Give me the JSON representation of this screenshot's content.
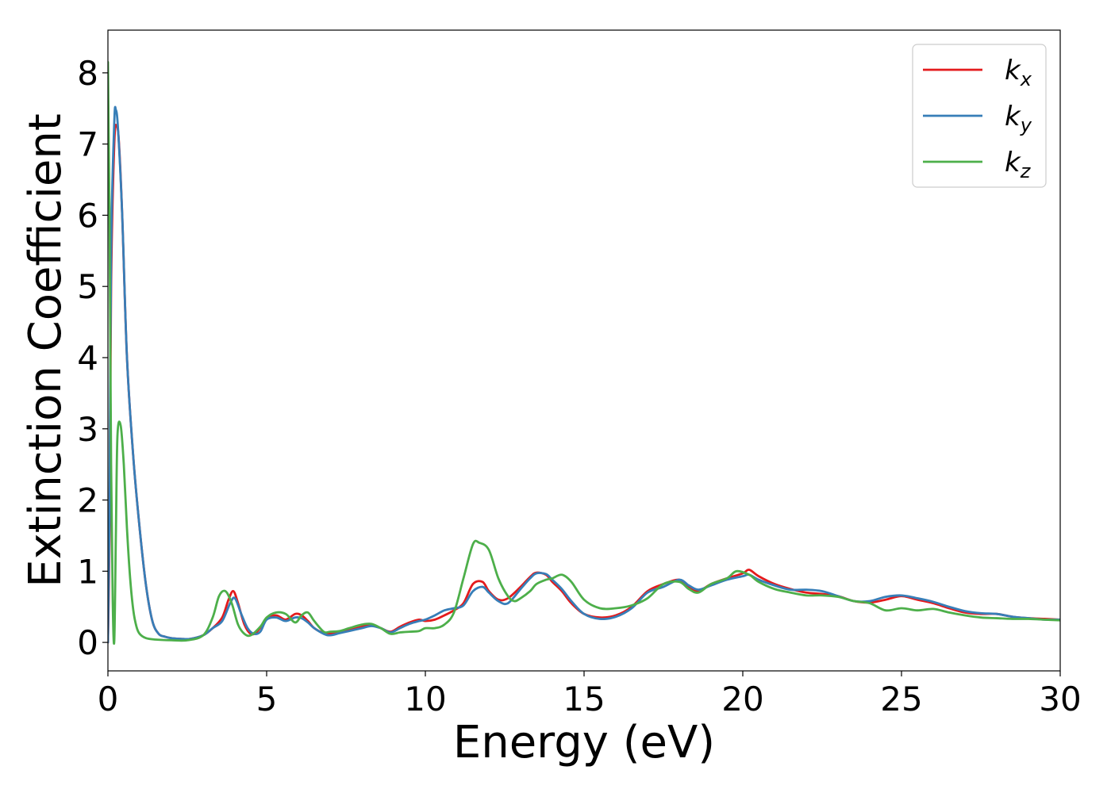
{
  "chart_data": {
    "type": "line",
    "xlabel": "Energy (eV)",
    "ylabel": "Extinction Coefficient",
    "xlim": [
      0,
      30
    ],
    "ylim": [
      -0.4,
      8.6
    ],
    "xticks": [
      "0",
      "5",
      "10",
      "15",
      "20",
      "25",
      "30"
    ],
    "yticks": [
      "0",
      "1",
      "2",
      "3",
      "4",
      "5",
      "6",
      "7",
      "8"
    ],
    "grid": false,
    "legend_position": "top-right",
    "series": [
      {
        "name": "k_x",
        "label_main": "k",
        "label_sub": "x",
        "color": "#e41a1c",
        "x": [
          0,
          0.05,
          0.1,
          0.2,
          0.28,
          0.35,
          0.45,
          0.6,
          0.8,
          1.0,
          1.2,
          1.4,
          1.6,
          1.8,
          2.0,
          2.3,
          2.6,
          3.0,
          3.3,
          3.6,
          3.8,
          3.95,
          4.1,
          4.3,
          4.5,
          4.7,
          5.0,
          5.3,
          5.6,
          5.9,
          6.1,
          6.3,
          6.5,
          6.8,
          7.0,
          7.3,
          7.6,
          8.0,
          8.3,
          8.6,
          8.9,
          9.2,
          9.5,
          9.8,
          10.0,
          10.3,
          10.6,
          10.9,
          11.2,
          11.5,
          11.8,
          12.0,
          12.3,
          12.6,
          13.0,
          13.3,
          13.5,
          13.8,
          14.0,
          14.3,
          14.6,
          15.0,
          15.5,
          16.0,
          16.5,
          17.0,
          17.5,
          18.0,
          18.3,
          18.6,
          19.0,
          19.5,
          20.0,
          20.2,
          20.5,
          21.0,
          21.5,
          22.0,
          22.5,
          23.0,
          23.5,
          24.0,
          24.5,
          25.0,
          25.5,
          26.0,
          26.5,
          27.0,
          27.5,
          28.0,
          28.5,
          29.0,
          29.5,
          30.0
        ],
        "y": [
          0.0,
          1.5,
          5.0,
          7.0,
          7.25,
          7.0,
          6.0,
          4.0,
          2.6,
          1.6,
          0.8,
          0.3,
          0.12,
          0.08,
          0.06,
          0.05,
          0.05,
          0.1,
          0.2,
          0.35,
          0.6,
          0.72,
          0.55,
          0.25,
          0.12,
          0.15,
          0.33,
          0.38,
          0.32,
          0.4,
          0.38,
          0.3,
          0.2,
          0.13,
          0.12,
          0.14,
          0.17,
          0.22,
          0.25,
          0.2,
          0.15,
          0.22,
          0.28,
          0.32,
          0.3,
          0.32,
          0.38,
          0.45,
          0.55,
          0.82,
          0.85,
          0.72,
          0.6,
          0.62,
          0.78,
          0.92,
          0.98,
          0.95,
          0.85,
          0.72,
          0.55,
          0.4,
          0.35,
          0.38,
          0.5,
          0.72,
          0.82,
          0.88,
          0.78,
          0.72,
          0.82,
          0.9,
          0.97,
          1.02,
          0.93,
          0.82,
          0.75,
          0.7,
          0.68,
          0.65,
          0.58,
          0.56,
          0.6,
          0.65,
          0.6,
          0.55,
          0.48,
          0.42,
          0.4,
          0.4,
          0.36,
          0.34,
          0.33,
          0.32
        ]
      },
      {
        "name": "k_y",
        "label_main": "k",
        "label_sub": "y",
        "color": "#377eb8",
        "x": [
          0,
          0.05,
          0.1,
          0.2,
          0.25,
          0.32,
          0.45,
          0.6,
          0.8,
          1.0,
          1.2,
          1.4,
          1.6,
          1.8,
          2.0,
          2.3,
          2.6,
          3.0,
          3.3,
          3.6,
          3.85,
          4.0,
          4.2,
          4.4,
          4.6,
          4.8,
          5.0,
          5.3,
          5.6,
          5.9,
          6.1,
          6.3,
          6.5,
          6.8,
          7.0,
          7.3,
          7.6,
          8.0,
          8.3,
          8.6,
          8.9,
          9.2,
          9.5,
          9.8,
          10.0,
          10.3,
          10.6,
          10.9,
          11.2,
          11.5,
          11.8,
          12.0,
          12.3,
          12.6,
          13.0,
          13.3,
          13.5,
          13.8,
          14.0,
          14.3,
          14.6,
          15.0,
          15.5,
          16.0,
          16.5,
          17.0,
          17.5,
          18.0,
          18.3,
          18.6,
          19.0,
          19.5,
          20.0,
          20.2,
          20.5,
          21.0,
          21.5,
          22.0,
          22.5,
          23.0,
          23.5,
          24.0,
          24.5,
          25.0,
          25.5,
          26.0,
          26.5,
          27.0,
          27.5,
          28.0,
          28.5,
          29.0,
          29.5,
          30.0
        ],
        "y": [
          0.0,
          1.8,
          5.5,
          7.3,
          7.48,
          7.2,
          6.0,
          4.0,
          2.6,
          1.6,
          0.8,
          0.3,
          0.12,
          0.08,
          0.06,
          0.05,
          0.05,
          0.1,
          0.2,
          0.3,
          0.55,
          0.62,
          0.4,
          0.2,
          0.12,
          0.15,
          0.32,
          0.35,
          0.3,
          0.35,
          0.34,
          0.28,
          0.2,
          0.12,
          0.1,
          0.13,
          0.16,
          0.2,
          0.23,
          0.2,
          0.14,
          0.2,
          0.26,
          0.3,
          0.32,
          0.38,
          0.45,
          0.48,
          0.52,
          0.72,
          0.78,
          0.7,
          0.58,
          0.55,
          0.75,
          0.9,
          0.97,
          0.96,
          0.88,
          0.75,
          0.58,
          0.4,
          0.33,
          0.36,
          0.48,
          0.7,
          0.78,
          0.88,
          0.8,
          0.74,
          0.8,
          0.88,
          0.93,
          0.95,
          0.88,
          0.8,
          0.74,
          0.74,
          0.72,
          0.65,
          0.58,
          0.58,
          0.64,
          0.66,
          0.62,
          0.57,
          0.5,
          0.44,
          0.41,
          0.4,
          0.36,
          0.34,
          0.32,
          0.32
        ]
      },
      {
        "name": "k_z",
        "label_main": "k",
        "label_sub": "z",
        "color": "#4daf4a",
        "x": [
          0,
          0.05,
          0.1,
          0.15,
          0.2,
          0.25,
          0.3,
          0.4,
          0.5,
          0.6,
          0.7,
          0.8,
          0.9,
          1.0,
          1.2,
          1.5,
          2.0,
          2.5,
          3.0,
          3.3,
          3.5,
          3.7,
          3.9,
          4.1,
          4.3,
          4.5,
          4.8,
          5.0,
          5.3,
          5.6,
          5.9,
          6.1,
          6.3,
          6.5,
          6.8,
          7.0,
          7.3,
          7.6,
          8.0,
          8.3,
          8.6,
          8.9,
          9.2,
          9.5,
          9.8,
          10.0,
          10.3,
          10.6,
          10.9,
          11.2,
          11.5,
          11.7,
          12.0,
          12.3,
          12.6,
          12.8,
          13.0,
          13.3,
          13.5,
          13.8,
          14.0,
          14.3,
          14.6,
          15.0,
          15.5,
          16.0,
          16.5,
          17.0,
          17.5,
          18.0,
          18.3,
          18.6,
          19.0,
          19.5,
          19.8,
          20.2,
          20.5,
          21.0,
          21.5,
          22.0,
          22.5,
          23.0,
          23.5,
          24.0,
          24.5,
          25.0,
          25.5,
          26.0,
          26.5,
          27.0,
          27.5,
          28.0,
          28.5,
          29.0,
          29.5,
          30.0
        ],
        "y": [
          8.15,
          6.0,
          2.5,
          0.6,
          0.02,
          1.5,
          2.9,
          3.05,
          2.5,
          1.6,
          0.9,
          0.45,
          0.22,
          0.12,
          0.06,
          0.04,
          0.03,
          0.03,
          0.1,
          0.35,
          0.65,
          0.72,
          0.55,
          0.25,
          0.12,
          0.1,
          0.22,
          0.35,
          0.42,
          0.4,
          0.28,
          0.38,
          0.42,
          0.3,
          0.15,
          0.15,
          0.16,
          0.2,
          0.25,
          0.26,
          0.2,
          0.12,
          0.14,
          0.15,
          0.16,
          0.2,
          0.2,
          0.25,
          0.42,
          0.9,
          1.38,
          1.4,
          1.3,
          0.9,
          0.65,
          0.58,
          0.62,
          0.72,
          0.82,
          0.88,
          0.9,
          0.95,
          0.85,
          0.6,
          0.48,
          0.48,
          0.52,
          0.62,
          0.82,
          0.85,
          0.75,
          0.7,
          0.82,
          0.9,
          1.0,
          0.95,
          0.85,
          0.75,
          0.7,
          0.66,
          0.66,
          0.64,
          0.58,
          0.55,
          0.45,
          0.48,
          0.45,
          0.47,
          0.42,
          0.38,
          0.35,
          0.34,
          0.33,
          0.33,
          0.32,
          0.31
        ]
      }
    ]
  }
}
